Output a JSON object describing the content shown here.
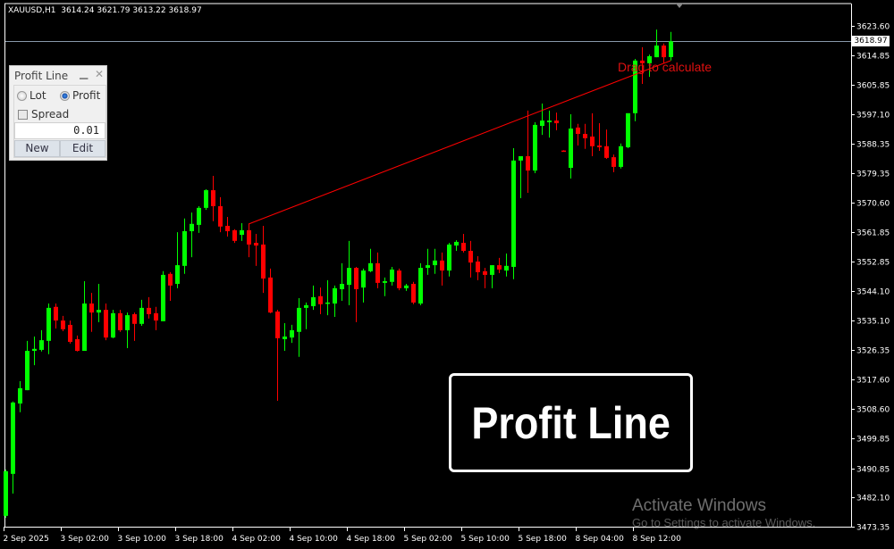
{
  "header": {
    "symbol": "XAUUSD,H1",
    "ohlc_text": "3614.24 3621.79 3613.22 3618.97"
  },
  "panel": {
    "title": "Profit Line",
    "minimize_icon": "minimize-icon",
    "close_icon": "close-icon",
    "radio_lot": "Lot",
    "radio_profit": "Profit",
    "selected_mode": "Profit",
    "spread_label": "Spread",
    "spread_checked": false,
    "value": "0.01",
    "new_label": "New",
    "edit_label": "Edit"
  },
  "overlay_title": "Profit Line",
  "drag_label": "Drag to calculate",
  "watermark": {
    "line1": "Activate Windows",
    "line2": "Go to Settings to activate Windows."
  },
  "colors": {
    "bull": "#00ff00",
    "bear": "#ff0000",
    "background": "#000000",
    "bid_line": "#8899aa",
    "trend_line": "#ff0000",
    "axis_text": "#ffffff"
  },
  "chart_data": {
    "type": "candlestick",
    "symbol": "XAUUSD",
    "timeframe": "H1",
    "bid": 3618.97,
    "bid_label": "3618.97",
    "ylim": [
      3473.35,
      3623.6
    ],
    "y_ticks": [
      "3623.60",
      "3614.85",
      "3605.85",
      "3597.10",
      "3588.35",
      "3579.35",
      "3570.60",
      "3561.85",
      "3552.85",
      "3544.10",
      "3535.10",
      "3526.35",
      "3517.60",
      "3508.60",
      "3499.85",
      "3490.85",
      "3482.10",
      "3473.35"
    ],
    "x_ticks": [
      "2 Sep 2025",
      "3 Sep 02:00",
      "3 Sep 10:00",
      "3 Sep 18:00",
      "4 Sep 02:00",
      "4 Sep 10:00",
      "4 Sep 18:00",
      "5 Sep 02:00",
      "5 Sep 10:00",
      "5 Sep 18:00",
      "8 Sep 04:00",
      "8 Sep 12:00"
    ],
    "x_tick_every_bars": 8,
    "trend_line": {
      "from_bar": 34,
      "from_price": 3564.15,
      "to_bar": 93,
      "to_price": 3613.16
    },
    "candles": [
      [
        3476.6,
        3490.5,
        3476.0,
        3490.0
      ],
      [
        3489.2,
        3510.9,
        3483.3,
        3510.6
      ],
      [
        3510.3,
        3517.0,
        3507.7,
        3514.9
      ],
      [
        3514.3,
        3529.1,
        3514.3,
        3526.1
      ],
      [
        3526.1,
        3530.4,
        3521.8,
        3526.7
      ],
      [
        3526.4,
        3532.3,
        3525.9,
        3529.3
      ],
      [
        3529.1,
        3540.3,
        3525.1,
        3539.0
      ],
      [
        3539.3,
        3540.3,
        3532.8,
        3535.2
      ],
      [
        3535.2,
        3536.6,
        3532.0,
        3532.6
      ],
      [
        3533.9,
        3535.2,
        3528.3,
        3528.8
      ],
      [
        3529.6,
        3530.7,
        3525.9,
        3526.1
      ],
      [
        3526.1,
        3547.0,
        3526.1,
        3540.3
      ],
      [
        3540.3,
        3543.5,
        3531.8,
        3537.6
      ],
      [
        3537.6,
        3546.2,
        3534.7,
        3538.4
      ],
      [
        3538.4,
        3540.3,
        3529.3,
        3530.1
      ],
      [
        3530.1,
        3538.4,
        3529.9,
        3537.4
      ],
      [
        3537.4,
        3538.4,
        3531.8,
        3532.3
      ],
      [
        3532.3,
        3537.6,
        3526.9,
        3536.8
      ],
      [
        3537.1,
        3537.6,
        3529.1,
        3534.2
      ],
      [
        3534.2,
        3541.4,
        3533.6,
        3539.0
      ],
      [
        3539.0,
        3542.2,
        3535.8,
        3537.1
      ],
      [
        3537.4,
        3539.3,
        3532.3,
        3535.2
      ],
      [
        3535.0,
        3550.0,
        3535.0,
        3548.9
      ],
      [
        3549.2,
        3549.7,
        3541.1,
        3545.7
      ],
      [
        3546.2,
        3561.7,
        3544.9,
        3551.8
      ],
      [
        3551.6,
        3565.8,
        3549.2,
        3562.0
      ],
      [
        3562.0,
        3567.6,
        3554.2,
        3564.2
      ],
      [
        3563.9,
        3569.5,
        3561.5,
        3569.0
      ],
      [
        3569.0,
        3574.6,
        3568.4,
        3574.3
      ],
      [
        3574.3,
        3578.6,
        3565.0,
        3569.5
      ],
      [
        3569.5,
        3572.2,
        3561.7,
        3563.4
      ],
      [
        3563.6,
        3566.3,
        3560.4,
        3562.0
      ],
      [
        3562.3,
        3562.6,
        3558.5,
        3559.1
      ],
      [
        3560.9,
        3564.4,
        3559.1,
        3562.3
      ],
      [
        3562.3,
        3564.2,
        3554.2,
        3558.0
      ],
      [
        3558.5,
        3561.2,
        3551.6,
        3557.7
      ],
      [
        3558.0,
        3563.6,
        3543.5,
        3547.8
      ],
      [
        3548.1,
        3550.8,
        3537.4,
        3537.6
      ],
      [
        3537.9,
        3538.4,
        3511.1,
        3529.9
      ],
      [
        3529.6,
        3534.4,
        3526.1,
        3530.4
      ],
      [
        3530.1,
        3533.9,
        3528.5,
        3532.3
      ],
      [
        3531.8,
        3541.9,
        3524.3,
        3539.0
      ],
      [
        3539.0,
        3540.6,
        3532.6,
        3539.8
      ],
      [
        3539.5,
        3545.7,
        3538.4,
        3542.2
      ],
      [
        3542.5,
        3545.1,
        3537.1,
        3540.1
      ],
      [
        3540.3,
        3547.3,
        3536.8,
        3540.6
      ],
      [
        3540.3,
        3545.7,
        3536.3,
        3544.9
      ],
      [
        3544.6,
        3552.4,
        3541.1,
        3546.2
      ],
      [
        3545.9,
        3559.1,
        3539.8,
        3551.0
      ],
      [
        3551.0,
        3551.3,
        3534.7,
        3544.6
      ],
      [
        3545.1,
        3550.8,
        3540.6,
        3550.2
      ],
      [
        3550.0,
        3556.7,
        3549.7,
        3552.4
      ],
      [
        3552.4,
        3555.6,
        3544.9,
        3546.5
      ],
      [
        3546.5,
        3548.1,
        3542.5,
        3547.0
      ],
      [
        3546.8,
        3551.3,
        3545.7,
        3550.5
      ],
      [
        3550.2,
        3550.8,
        3544.3,
        3544.9
      ],
      [
        3544.9,
        3546.2,
        3544.1,
        3545.7
      ],
      [
        3546.2,
        3546.8,
        3540.1,
        3540.6
      ],
      [
        3540.3,
        3552.4,
        3539.8,
        3551.0
      ],
      [
        3551.0,
        3556.7,
        3548.9,
        3551.8
      ],
      [
        3551.8,
        3556.7,
        3549.2,
        3553.2
      ],
      [
        3553.2,
        3555.6,
        3545.7,
        3550.2
      ],
      [
        3550.2,
        3558.5,
        3548.4,
        3558.0
      ],
      [
        3557.7,
        3559.3,
        3556.1,
        3558.8
      ],
      [
        3558.5,
        3561.2,
        3555.6,
        3556.1
      ],
      [
        3556.1,
        3559.1,
        3548.1,
        3552.6
      ],
      [
        3552.9,
        3554.5,
        3547.3,
        3549.7
      ],
      [
        3550.0,
        3551.0,
        3544.9,
        3548.9
      ],
      [
        3548.9,
        3551.8,
        3544.9,
        3551.8
      ],
      [
        3551.8,
        3554.0,
        3549.4,
        3550.5
      ],
      [
        3550.2,
        3555.3,
        3548.4,
        3551.6
      ],
      [
        3551.3,
        3586.9,
        3547.6,
        3583.2
      ],
      [
        3583.2,
        3584.5,
        3571.9,
        3584.5
      ],
      [
        3584.5,
        3598.2,
        3573.5,
        3580.2
      ],
      [
        3580.2,
        3594.7,
        3579.4,
        3593.9
      ],
      [
        3593.6,
        3600.3,
        3590.9,
        3595.2
      ],
      [
        3594.7,
        3598.2,
        3590.1,
        3595.2
      ],
      [
        3595.2,
        3597.6,
        3592.3,
        3594.4
      ],
      [
        3586.2,
        3586.3,
        3586.0,
        3586.0
      ],
      [
        3581.0,
        3597.1,
        3577.8,
        3592.8
      ],
      [
        3593.1,
        3594.2,
        3587.7,
        3591.2
      ],
      [
        3591.2,
        3594.2,
        3586.7,
        3589.9
      ],
      [
        3590.4,
        3597.4,
        3584.5,
        3587.5
      ],
      [
        3587.7,
        3594.4,
        3586.1,
        3587.2
      ],
      [
        3587.5,
        3592.5,
        3583.7,
        3584.0
      ],
      [
        3584.2,
        3585.0,
        3579.7,
        3581.3
      ],
      [
        3581.3,
        3588.3,
        3580.8,
        3587.5
      ],
      [
        3587.2,
        3597.4,
        3586.9,
        3597.4
      ],
      [
        3597.4,
        3613.7,
        3595.0,
        3613.2
      ],
      [
        3613.2,
        3617.2,
        3606.2,
        3612.4
      ],
      [
        3612.4,
        3615.0,
        3608.3,
        3614.5
      ],
      [
        3614.2,
        3622.5,
        3614.2,
        3617.7
      ],
      [
        3617.7,
        3618.3,
        3612.4,
        3614.2
      ],
      [
        3614.24,
        3621.79,
        3613.22,
        3618.97
      ]
    ]
  }
}
